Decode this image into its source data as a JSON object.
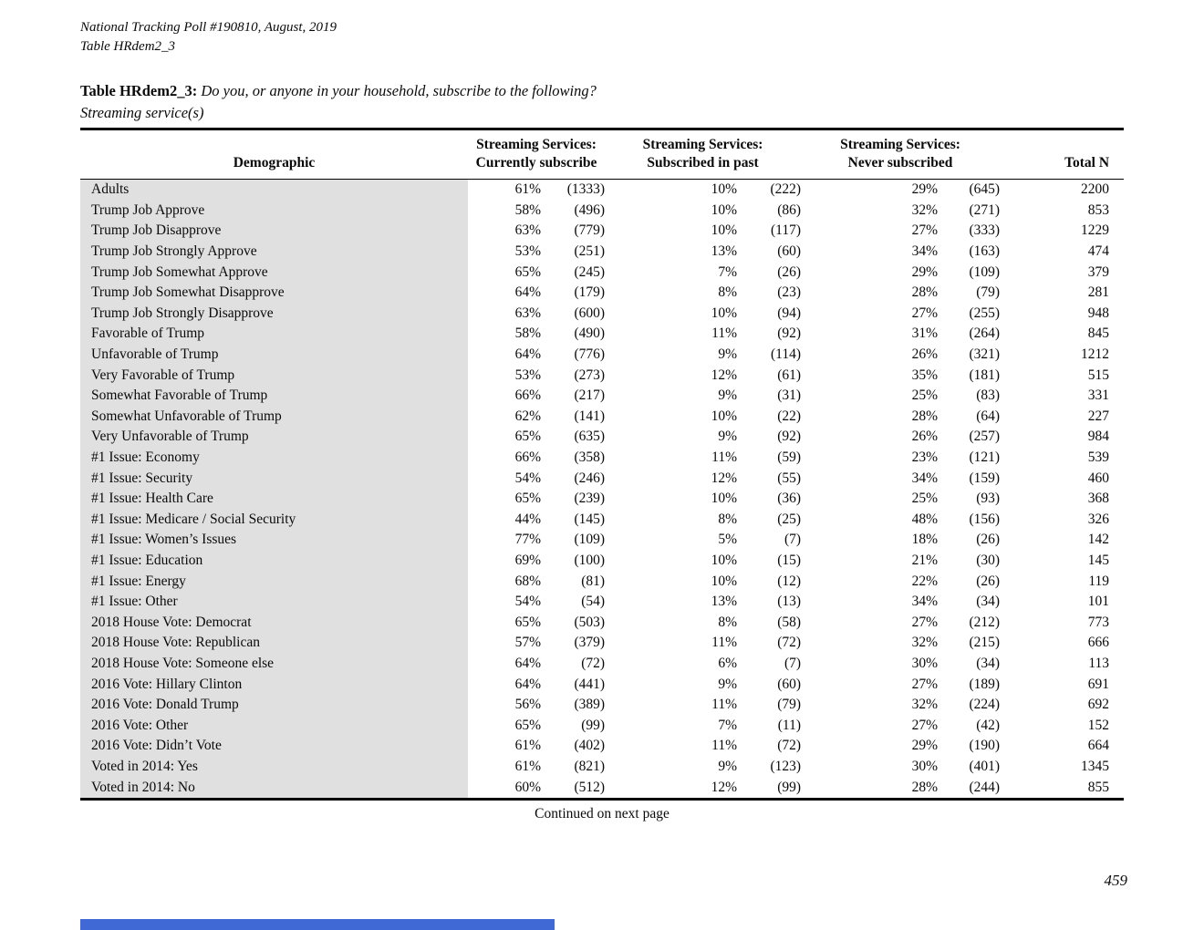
{
  "page": {
    "header_line1": "National Tracking Poll #190810, August, 2019",
    "header_line2": "Table HRdem2_3",
    "title_label": "Table HRdem2_3:",
    "title_question": "Do you, or anyone in your household, subscribe to the following?",
    "title_sub": "Streaming service(s)",
    "footer_note": "Continued on next page",
    "page_number": "459",
    "accent_bar_color": "#4169d6",
    "label_column_bg": "#e0e0e0"
  },
  "table": {
    "columns": {
      "demographic": "Demographic",
      "group1_line1": "Streaming Services:",
      "group1_line2": "Currently subscribe",
      "group2_line1": "Streaming Services:",
      "group2_line2": "Subscribed in past",
      "group3_line1": "Streaming Services:",
      "group3_line2": "Never subscribed",
      "total": "Total N"
    },
    "rows": [
      [
        "Adults",
        "61%",
        "(1333)",
        "10%",
        "(222)",
        "29%",
        "(645)",
        "2200"
      ],
      [
        "Trump Job Approve",
        "58%",
        "(496)",
        "10%",
        "(86)",
        "32%",
        "(271)",
        "853"
      ],
      [
        "Trump Job Disapprove",
        "63%",
        "(779)",
        "10%",
        "(117)",
        "27%",
        "(333)",
        "1229"
      ],
      [
        "Trump Job Strongly Approve",
        "53%",
        "(251)",
        "13%",
        "(60)",
        "34%",
        "(163)",
        "474"
      ],
      [
        "Trump Job Somewhat Approve",
        "65%",
        "(245)",
        "7%",
        "(26)",
        "29%",
        "(109)",
        "379"
      ],
      [
        "Trump Job Somewhat Disapprove",
        "64%",
        "(179)",
        "8%",
        "(23)",
        "28%",
        "(79)",
        "281"
      ],
      [
        "Trump Job Strongly Disapprove",
        "63%",
        "(600)",
        "10%",
        "(94)",
        "27%",
        "(255)",
        "948"
      ],
      [
        "Favorable of Trump",
        "58%",
        "(490)",
        "11%",
        "(92)",
        "31%",
        "(264)",
        "845"
      ],
      [
        "Unfavorable of Trump",
        "64%",
        "(776)",
        "9%",
        "(114)",
        "26%",
        "(321)",
        "1212"
      ],
      [
        "Very Favorable of Trump",
        "53%",
        "(273)",
        "12%",
        "(61)",
        "35%",
        "(181)",
        "515"
      ],
      [
        "Somewhat Favorable of Trump",
        "66%",
        "(217)",
        "9%",
        "(31)",
        "25%",
        "(83)",
        "331"
      ],
      [
        "Somewhat Unfavorable of Trump",
        "62%",
        "(141)",
        "10%",
        "(22)",
        "28%",
        "(64)",
        "227"
      ],
      [
        "Very Unfavorable of Trump",
        "65%",
        "(635)",
        "9%",
        "(92)",
        "26%",
        "(257)",
        "984"
      ],
      [
        "#1 Issue: Economy",
        "66%",
        "(358)",
        "11%",
        "(59)",
        "23%",
        "(121)",
        "539"
      ],
      [
        "#1 Issue: Security",
        "54%",
        "(246)",
        "12%",
        "(55)",
        "34%",
        "(159)",
        "460"
      ],
      [
        "#1 Issue: Health Care",
        "65%",
        "(239)",
        "10%",
        "(36)",
        "25%",
        "(93)",
        "368"
      ],
      [
        "#1 Issue: Medicare / Social Security",
        "44%",
        "(145)",
        "8%",
        "(25)",
        "48%",
        "(156)",
        "326"
      ],
      [
        "#1 Issue: Women’s Issues",
        "77%",
        "(109)",
        "5%",
        "(7)",
        "18%",
        "(26)",
        "142"
      ],
      [
        "#1 Issue: Education",
        "69%",
        "(100)",
        "10%",
        "(15)",
        "21%",
        "(30)",
        "145"
      ],
      [
        "#1 Issue: Energy",
        "68%",
        "(81)",
        "10%",
        "(12)",
        "22%",
        "(26)",
        "119"
      ],
      [
        "#1 Issue: Other",
        "54%",
        "(54)",
        "13%",
        "(13)",
        "34%",
        "(34)",
        "101"
      ],
      [
        "2018 House Vote: Democrat",
        "65%",
        "(503)",
        "8%",
        "(58)",
        "27%",
        "(212)",
        "773"
      ],
      [
        "2018 House Vote: Republican",
        "57%",
        "(379)",
        "11%",
        "(72)",
        "32%",
        "(215)",
        "666"
      ],
      [
        "2018 House Vote: Someone else",
        "64%",
        "(72)",
        "6%",
        "(7)",
        "30%",
        "(34)",
        "113"
      ],
      [
        "2016 Vote: Hillary Clinton",
        "64%",
        "(441)",
        "9%",
        "(60)",
        "27%",
        "(189)",
        "691"
      ],
      [
        "2016 Vote: Donald Trump",
        "56%",
        "(389)",
        "11%",
        "(79)",
        "32%",
        "(224)",
        "692"
      ],
      [
        "2016 Vote: Other",
        "65%",
        "(99)",
        "7%",
        "(11)",
        "27%",
        "(42)",
        "152"
      ],
      [
        "2016 Vote: Didn’t Vote",
        "61%",
        "(402)",
        "11%",
        "(72)",
        "29%",
        "(190)",
        "664"
      ],
      [
        "Voted in 2014: Yes",
        "61%",
        "(821)",
        "9%",
        "(123)",
        "30%",
        "(401)",
        "1345"
      ],
      [
        "Voted in 2014: No",
        "60%",
        "(512)",
        "12%",
        "(99)",
        "28%",
        "(244)",
        "855"
      ]
    ]
  }
}
